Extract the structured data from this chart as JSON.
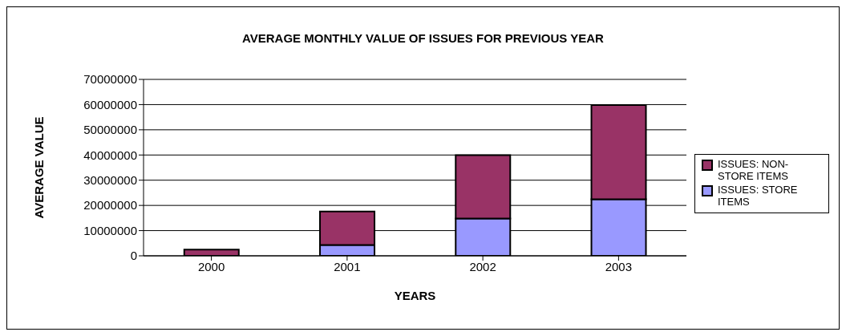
{
  "chart_data": {
    "type": "bar",
    "title": "AVERAGE MONTHLY VALUE OF ISSUES FOR PREVIOUS YEAR",
    "xlabel": "YEARS",
    "ylabel": "AVERAGE VALUE",
    "categories": [
      "2000",
      "2001",
      "2002",
      "2003"
    ],
    "series": [
      {
        "name": "ISSUES: STORE ITEMS",
        "color": "#9999ff",
        "values": [
          0,
          4300000,
          14800000,
          22400000
        ]
      },
      {
        "name": "ISSUES: NON-STORE ITEMS",
        "color": "#993366",
        "values": [
          2500000,
          13300000,
          25100000,
          37400000
        ]
      }
    ],
    "stacked": true,
    "ylim": [
      0,
      70000000
    ],
    "yticks": [
      0,
      10000000,
      20000000,
      30000000,
      40000000,
      50000000,
      60000000,
      70000000
    ],
    "grid": "y",
    "legend": "right"
  }
}
